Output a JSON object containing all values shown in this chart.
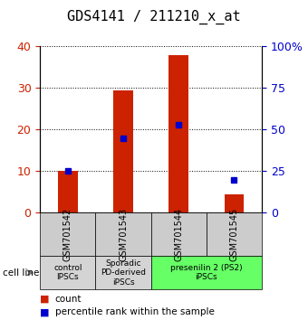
{
  "title": "GDS4141 / 211210_x_at",
  "samples": [
    "GSM701542",
    "GSM701543",
    "GSM701544",
    "GSM701545"
  ],
  "counts": [
    10,
    29.5,
    38,
    4.5
  ],
  "percentile_ranks": [
    25,
    45,
    53,
    20
  ],
  "left_ylim": [
    0,
    40
  ],
  "right_ylim": [
    0,
    100
  ],
  "left_yticks": [
    0,
    10,
    20,
    30,
    40
  ],
  "right_yticks": [
    0,
    25,
    50,
    75,
    100
  ],
  "right_yticklabels": [
    "0",
    "25",
    "50",
    "75",
    "100%"
  ],
  "bar_color": "#cc2200",
  "marker_color": "#0000cc",
  "grid_color": "#000000",
  "cell_line_labels": [
    "control\nIPSCs",
    "Sporadic\nPD-derived\niPSCs",
    "presenilin 2 (PS2)\niPSCs"
  ],
  "cell_line_spans": [
    [
      0,
      1
    ],
    [
      1,
      2
    ],
    [
      2,
      4
    ]
  ],
  "cell_line_colors": [
    "#d4d4d4",
    "#d4d4d4",
    "#66ff66"
  ],
  "gsm_bg_color": "#cccccc",
  "legend_count_color": "#cc2200",
  "legend_pct_color": "#0000cc",
  "legend_count_label": "count",
  "legend_pct_label": "percentile rank within the sample",
  "cell_line_text": "cell line",
  "arrow_color": "#777777",
  "title_fontsize": 11,
  "tick_fontsize": 9,
  "label_fontsize": 8.5
}
